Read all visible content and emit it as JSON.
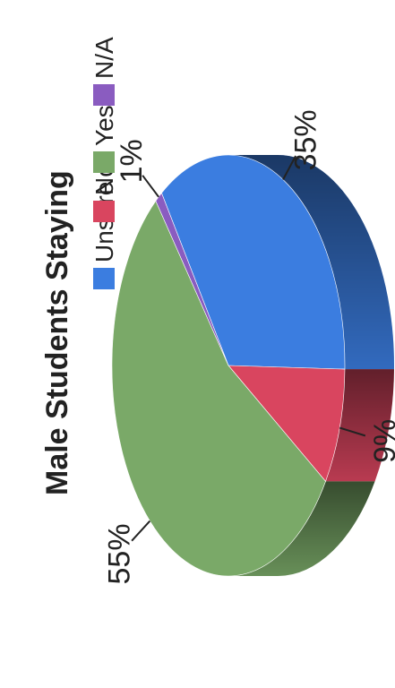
{
  "chart_data": {
    "type": "pie",
    "title": "Male Students Staying",
    "categories": [
      "Unsure",
      "No",
      "Yes",
      "N/A"
    ],
    "values": [
      35,
      9,
      55,
      1
    ],
    "data_labels": [
      "35%",
      "9%",
      "55%",
      "1%"
    ],
    "colors": {
      "Unsure": "#3b7de0",
      "No": "#d9455f",
      "Yes": "#7aa968",
      "N/A": "#8a5cc0"
    },
    "legend": "top",
    "three_d": true
  }
}
